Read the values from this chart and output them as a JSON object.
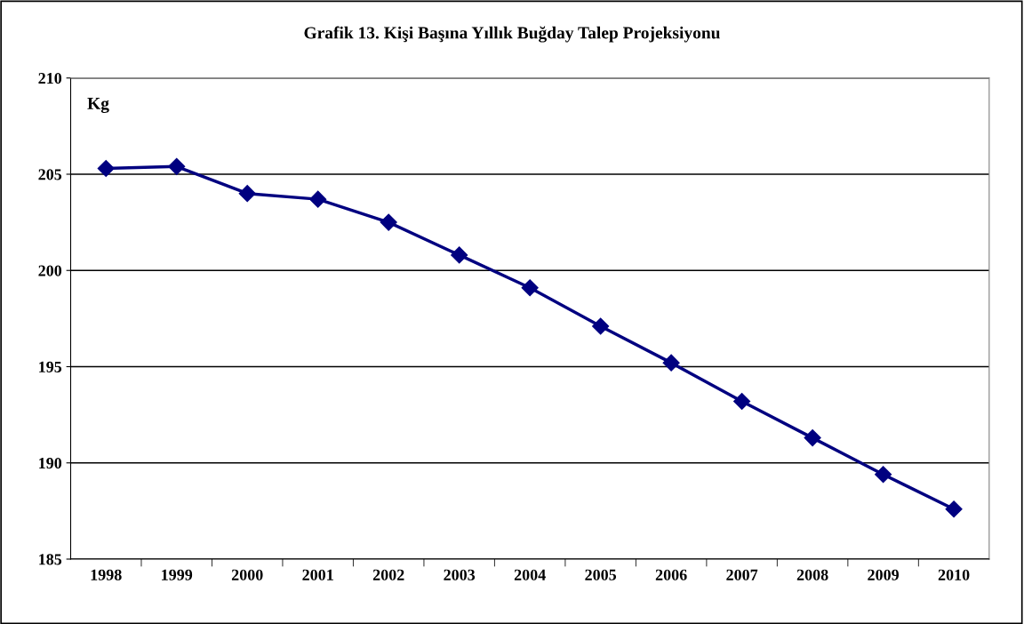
{
  "chart_data": {
    "type": "line",
    "title": "Grafik 13. Kişi Başına Yıllık Buğday Talep Projeksiyonu",
    "ylabel": "Kg",
    "categories": [
      "1998",
      "1999",
      "2000",
      "2001",
      "2002",
      "2003",
      "2004",
      "2005",
      "2006",
      "2007",
      "2008",
      "2009",
      "2010"
    ],
    "series": [
      {
        "color": "#000080",
        "values": [
          205.3,
          205.4,
          204.0,
          203.7,
          202.5,
          200.8,
          199.1,
          197.1,
          195.2,
          193.2,
          191.3,
          189.4,
          187.6
        ]
      }
    ],
    "ylim": [
      185,
      210
    ],
    "yticks": [
      185,
      190,
      195,
      200,
      205,
      210
    ],
    "grid": "y",
    "marker": "diamond",
    "line_style": "solid",
    "legend": false
  }
}
